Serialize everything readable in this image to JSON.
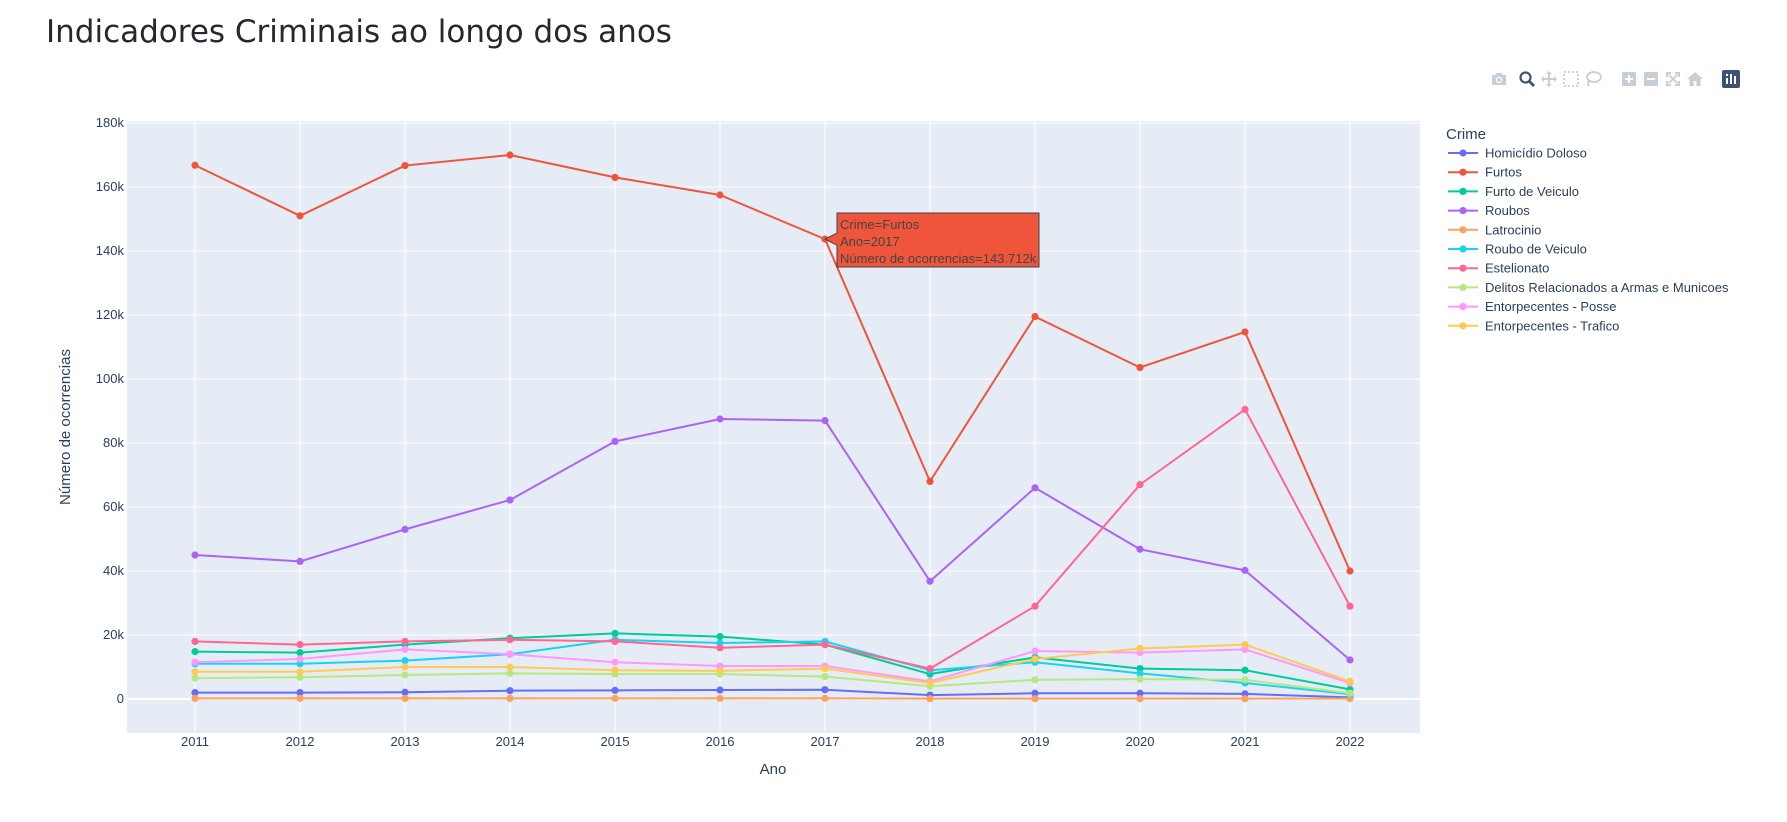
{
  "page": {
    "title": "Indicadores Criminais ao longo dos anos"
  },
  "modebar": {
    "buttons": [
      {
        "name": "camera-icon"
      },
      {
        "name": "zoom-icon"
      },
      {
        "name": "pan-icon"
      },
      {
        "name": "box-select-icon"
      },
      {
        "name": "lasso-select-icon"
      },
      {
        "name": "zoom-in-icon"
      },
      {
        "name": "zoom-out-icon"
      },
      {
        "name": "autoscale-icon"
      },
      {
        "name": "reset-axes-icon"
      },
      {
        "name": "plotly-logo-icon"
      }
    ]
  },
  "chart_data": {
    "type": "line",
    "xlabel": "Ano",
    "ylabel": "Número de ocorrencias",
    "x": [
      2011,
      2012,
      2013,
      2014,
      2015,
      2016,
      2017,
      2018,
      2019,
      2020,
      2021,
      2022
    ],
    "ylim": [
      -10000,
      180000
    ],
    "y_ticks": [
      0,
      20000,
      40000,
      60000,
      80000,
      100000,
      120000,
      140000,
      160000,
      180000
    ],
    "y_tick_labels": [
      "0",
      "20k",
      "40k",
      "60k",
      "80k",
      "100k",
      "120k",
      "140k",
      "160k",
      "180k"
    ],
    "grid": true,
    "plot_background": "#e5ecf6",
    "legend": {
      "title": "Crime",
      "position": "right"
    },
    "series": [
      {
        "name": "Homicídio Doloso",
        "color": "#636efa",
        "values": [
          2000,
          2000,
          2100,
          2600,
          2700,
          2800,
          2900,
          1200,
          1800,
          1800,
          1600,
          500
        ]
      },
      {
        "name": "Furtos",
        "color": "#EF553B",
        "values": [
          166800,
          151000,
          166700,
          170000,
          163000,
          157500,
          143712,
          68000,
          119500,
          103600,
          114700,
          40000
        ]
      },
      {
        "name": "Furto de Veiculo",
        "color": "#00cc96",
        "values": [
          14800,
          14500,
          17000,
          19000,
          20500,
          19500,
          17000,
          7800,
          13000,
          9500,
          9000,
          3000
        ]
      },
      {
        "name": "Roubos",
        "color": "#ab63fa",
        "values": [
          45000,
          43000,
          53000,
          62200,
          80500,
          87500,
          87000,
          36800,
          66000,
          46800,
          40200,
          12200
        ]
      },
      {
        "name": "Latrocinio",
        "color": "#FFA15A",
        "values": [
          200,
          200,
          200,
          200,
          200,
          200,
          200,
          100,
          100,
          100,
          100,
          100
        ]
      },
      {
        "name": "Roubo de Veiculo",
        "color": "#19d3f3",
        "values": [
          11000,
          11000,
          12000,
          14000,
          18500,
          17500,
          18000,
          9000,
          11500,
          8000,
          5000,
          1500
        ]
      },
      {
        "name": "Estelionato",
        "color": "#FF6692",
        "values": [
          18000,
          17000,
          18000,
          18500,
          18000,
          16000,
          17000,
          9500,
          29000,
          67000,
          90500,
          29000
        ]
      },
      {
        "name": "Delitos Relacionados a Armas e Municoes",
        "color": "#B6E880",
        "values": [
          6500,
          6800,
          7500,
          8000,
          7800,
          7800,
          7000,
          4000,
          6000,
          6200,
          6000,
          1800
        ]
      },
      {
        "name": "Entorpecentes - Posse",
        "color": "#FF97FF",
        "values": [
          11500,
          12500,
          15500,
          14000,
          11500,
          10300,
          10300,
          5500,
          15000,
          14500,
          15500,
          5000
        ]
      },
      {
        "name": "Entorpecentes - Trafico",
        "color": "#FECB52",
        "values": [
          8500,
          8500,
          10000,
          10000,
          9000,
          8800,
          9500,
          5000,
          12500,
          15800,
          17000,
          5500
        ]
      }
    ],
    "hover_label": {
      "series_index": 1,
      "point_index": 6,
      "lines": [
        "Crime=Furtos",
        "Ano=2017",
        "Número de ocorrencias=143.712k"
      ]
    }
  }
}
